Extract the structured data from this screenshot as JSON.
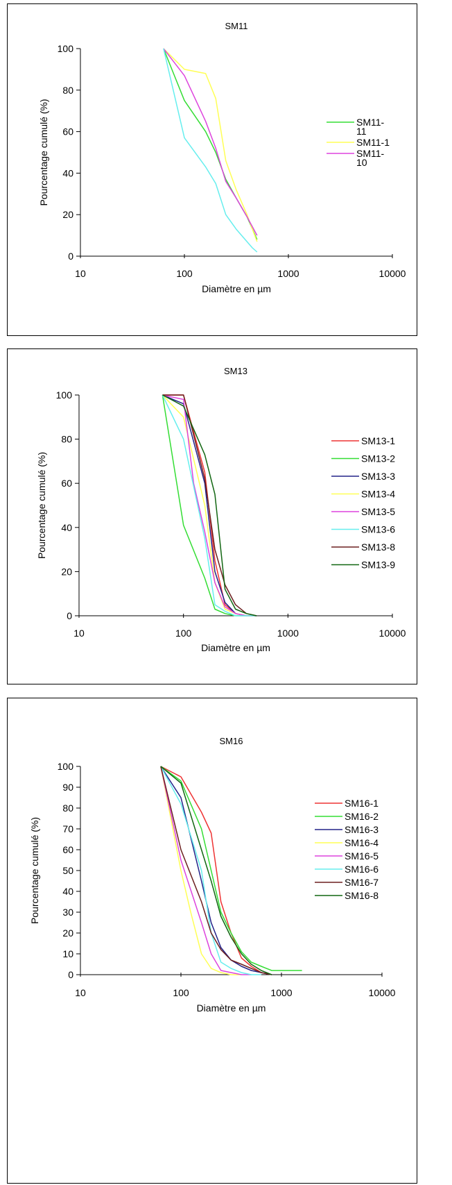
{
  "chart_data": [
    {
      "type": "line",
      "title": "SM11",
      "xlabel": "Diamètre en  µm",
      "ylabel": "Pourcentage cumulé (%)",
      "x_scale": "log",
      "xlim": [
        10,
        10000
      ],
      "ylim": [
        0,
        100
      ],
      "x_ticks": [
        "10",
        "100",
        "1000",
        "10000"
      ],
      "y_ticks": [
        "0",
        "20",
        "40",
        "60",
        "80",
        "100"
      ],
      "legend_position": "right",
      "series": [
        {
          "name": "SM11-\n11",
          "color": "#33dd33",
          "x": [
            63,
            100,
            160,
            200,
            250,
            315,
            400,
            500
          ],
          "y": [
            100,
            75,
            60,
            50,
            37,
            28,
            19,
            8
          ]
        },
        {
          "name": "SM11-1",
          "color": "#ffff55",
          "x": [
            63,
            100,
            160,
            200,
            250,
            315,
            400,
            500
          ],
          "y": [
            100,
            90,
            88,
            76,
            46,
            32,
            20,
            7
          ]
        },
        {
          "name": "SM11-\n10",
          "color": "#dd44dd",
          "x": [
            63,
            100,
            160,
            200,
            250,
            315,
            400,
            500
          ],
          "y": [
            100,
            87,
            65,
            52,
            36,
            28,
            19,
            10
          ]
        },
        {
          "name": "",
          "color": "#66eeee",
          "x": [
            63,
            100,
            160,
            200,
            250,
            315,
            400,
            450,
            500
          ],
          "y": [
            100,
            57,
            43,
            35,
            20,
            13,
            7,
            4,
            2
          ]
        }
      ]
    },
    {
      "type": "line",
      "title": "SM13",
      "xlabel": "Diamètre en µm",
      "ylabel": "Pourcentage cumulé (%)",
      "x_scale": "log",
      "xlim": [
        10,
        10000
      ],
      "ylim": [
        0,
        100
      ],
      "x_ticks": [
        "10",
        "100",
        "1000",
        "10000"
      ],
      "y_ticks": [
        "0",
        "20",
        "40",
        "60",
        "80",
        "100"
      ],
      "legend_position": "right",
      "series": [
        {
          "name": "SM13-1",
          "color": "#ee3333",
          "x": [
            63,
            100,
            160,
            200,
            250,
            315,
            400,
            500
          ],
          "y": [
            100,
            100,
            65,
            25,
            5,
            1,
            0,
            0
          ]
        },
        {
          "name": "SM13-2",
          "color": "#33dd33",
          "x": [
            63,
            100,
            160,
            200,
            250,
            315,
            400,
            500
          ],
          "y": [
            100,
            41,
            17,
            3,
            1,
            0,
            0,
            0
          ]
        },
        {
          "name": "SM13-3",
          "color": "#222288",
          "x": [
            63,
            100,
            160,
            200,
            250,
            315,
            400,
            500
          ],
          "y": [
            100,
            96,
            60,
            20,
            6,
            1,
            0,
            0
          ]
        },
        {
          "name": "SM13-4",
          "color": "#ffff55",
          "x": [
            63,
            100,
            160,
            200,
            250,
            315,
            400,
            500
          ],
          "y": [
            100,
            90,
            50,
            15,
            3,
            1,
            0,
            0
          ]
        },
        {
          "name": "SM13-5",
          "color": "#dd44dd",
          "x": [
            63,
            100,
            125,
            160,
            200,
            250,
            315,
            400,
            500
          ],
          "y": [
            100,
            98,
            60,
            38,
            15,
            4,
            1,
            0,
            0
          ]
        },
        {
          "name": "SM13-6",
          "color": "#66eeee",
          "x": [
            63,
            100,
            160,
            200,
            250,
            315,
            400,
            500
          ],
          "y": [
            100,
            80,
            35,
            5,
            2,
            0,
            0,
            0
          ]
        },
        {
          "name": "SM13-8",
          "color": "#6b1f1f",
          "x": [
            63,
            100,
            160,
            200,
            250,
            315,
            400,
            500
          ],
          "y": [
            100,
            100,
            62,
            30,
            14,
            5,
            1,
            0
          ]
        },
        {
          "name": "SM13-9",
          "color": "#116611",
          "x": [
            63,
            100,
            160,
            200,
            250,
            315,
            400,
            500
          ],
          "y": [
            100,
            95,
            73,
            55,
            12,
            3,
            1,
            0
          ]
        }
      ]
    },
    {
      "type": "line",
      "title": "SM16",
      "xlabel": "Diamètre en µm",
      "ylabel": "Pourcentage cumulé (%)",
      "x_scale": "log",
      "xlim": [
        10,
        10000
      ],
      "ylim": [
        0,
        100
      ],
      "x_ticks": [
        "10",
        "100",
        "1000",
        "10000"
      ],
      "y_ticks": [
        "0",
        "10",
        "20",
        "30",
        "40",
        "50",
        "60",
        "70",
        "80",
        "90",
        "100"
      ],
      "legend_position": "right",
      "series": [
        {
          "name": "SM16-1",
          "color": "#ee3333",
          "x": [
            63,
            100,
            160,
            200,
            250,
            315,
            400,
            500,
            630,
            800
          ],
          "y": [
            100,
            95,
            78,
            68,
            35,
            20,
            8,
            4,
            1,
            0
          ]
        },
        {
          "name": "SM16-2",
          "color": "#33dd33",
          "x": [
            63,
            100,
            160,
            200,
            250,
            315,
            400,
            500,
            630,
            800,
            1000,
            1600
          ],
          "y": [
            100,
            93,
            70,
            50,
            30,
            20,
            11,
            6,
            4,
            2,
            2,
            2
          ]
        },
        {
          "name": "SM16-3",
          "color": "#222288",
          "x": [
            63,
            100,
            160,
            200,
            250,
            315,
            400,
            500,
            630,
            800
          ],
          "y": [
            100,
            85,
            45,
            25,
            13,
            7,
            4,
            2,
            1,
            0
          ]
        },
        {
          "name": "SM16-4",
          "color": "#ffff55",
          "x": [
            63,
            100,
            125,
            160,
            200,
            250,
            315,
            400
          ],
          "y": [
            100,
            50,
            30,
            10,
            3,
            1,
            0,
            0
          ]
        },
        {
          "name": "SM16-5",
          "color": "#dd44dd",
          "x": [
            63,
            100,
            160,
            200,
            250,
            315,
            400,
            500
          ],
          "y": [
            100,
            55,
            25,
            10,
            2,
            1,
            0,
            0
          ]
        },
        {
          "name": "SM16-6",
          "color": "#66eeee",
          "x": [
            63,
            100,
            160,
            200,
            250,
            315,
            400,
            500,
            630
          ],
          "y": [
            100,
            82,
            50,
            20,
            6,
            3,
            1,
            0,
            0
          ]
        },
        {
          "name": "SM16-7",
          "color": "#6b1f1f",
          "x": [
            63,
            100,
            160,
            200,
            250,
            315,
            400,
            500,
            630,
            800
          ],
          "y": [
            100,
            60,
            35,
            20,
            12,
            7,
            5,
            3,
            1,
            0
          ]
        },
        {
          "name": "SM16-8",
          "color": "#116611",
          "x": [
            63,
            100,
            160,
            200,
            250,
            315,
            400,
            500,
            630,
            800
          ],
          "y": [
            100,
            92,
            60,
            45,
            28,
            18,
            10,
            5,
            2,
            0
          ]
        }
      ]
    }
  ]
}
